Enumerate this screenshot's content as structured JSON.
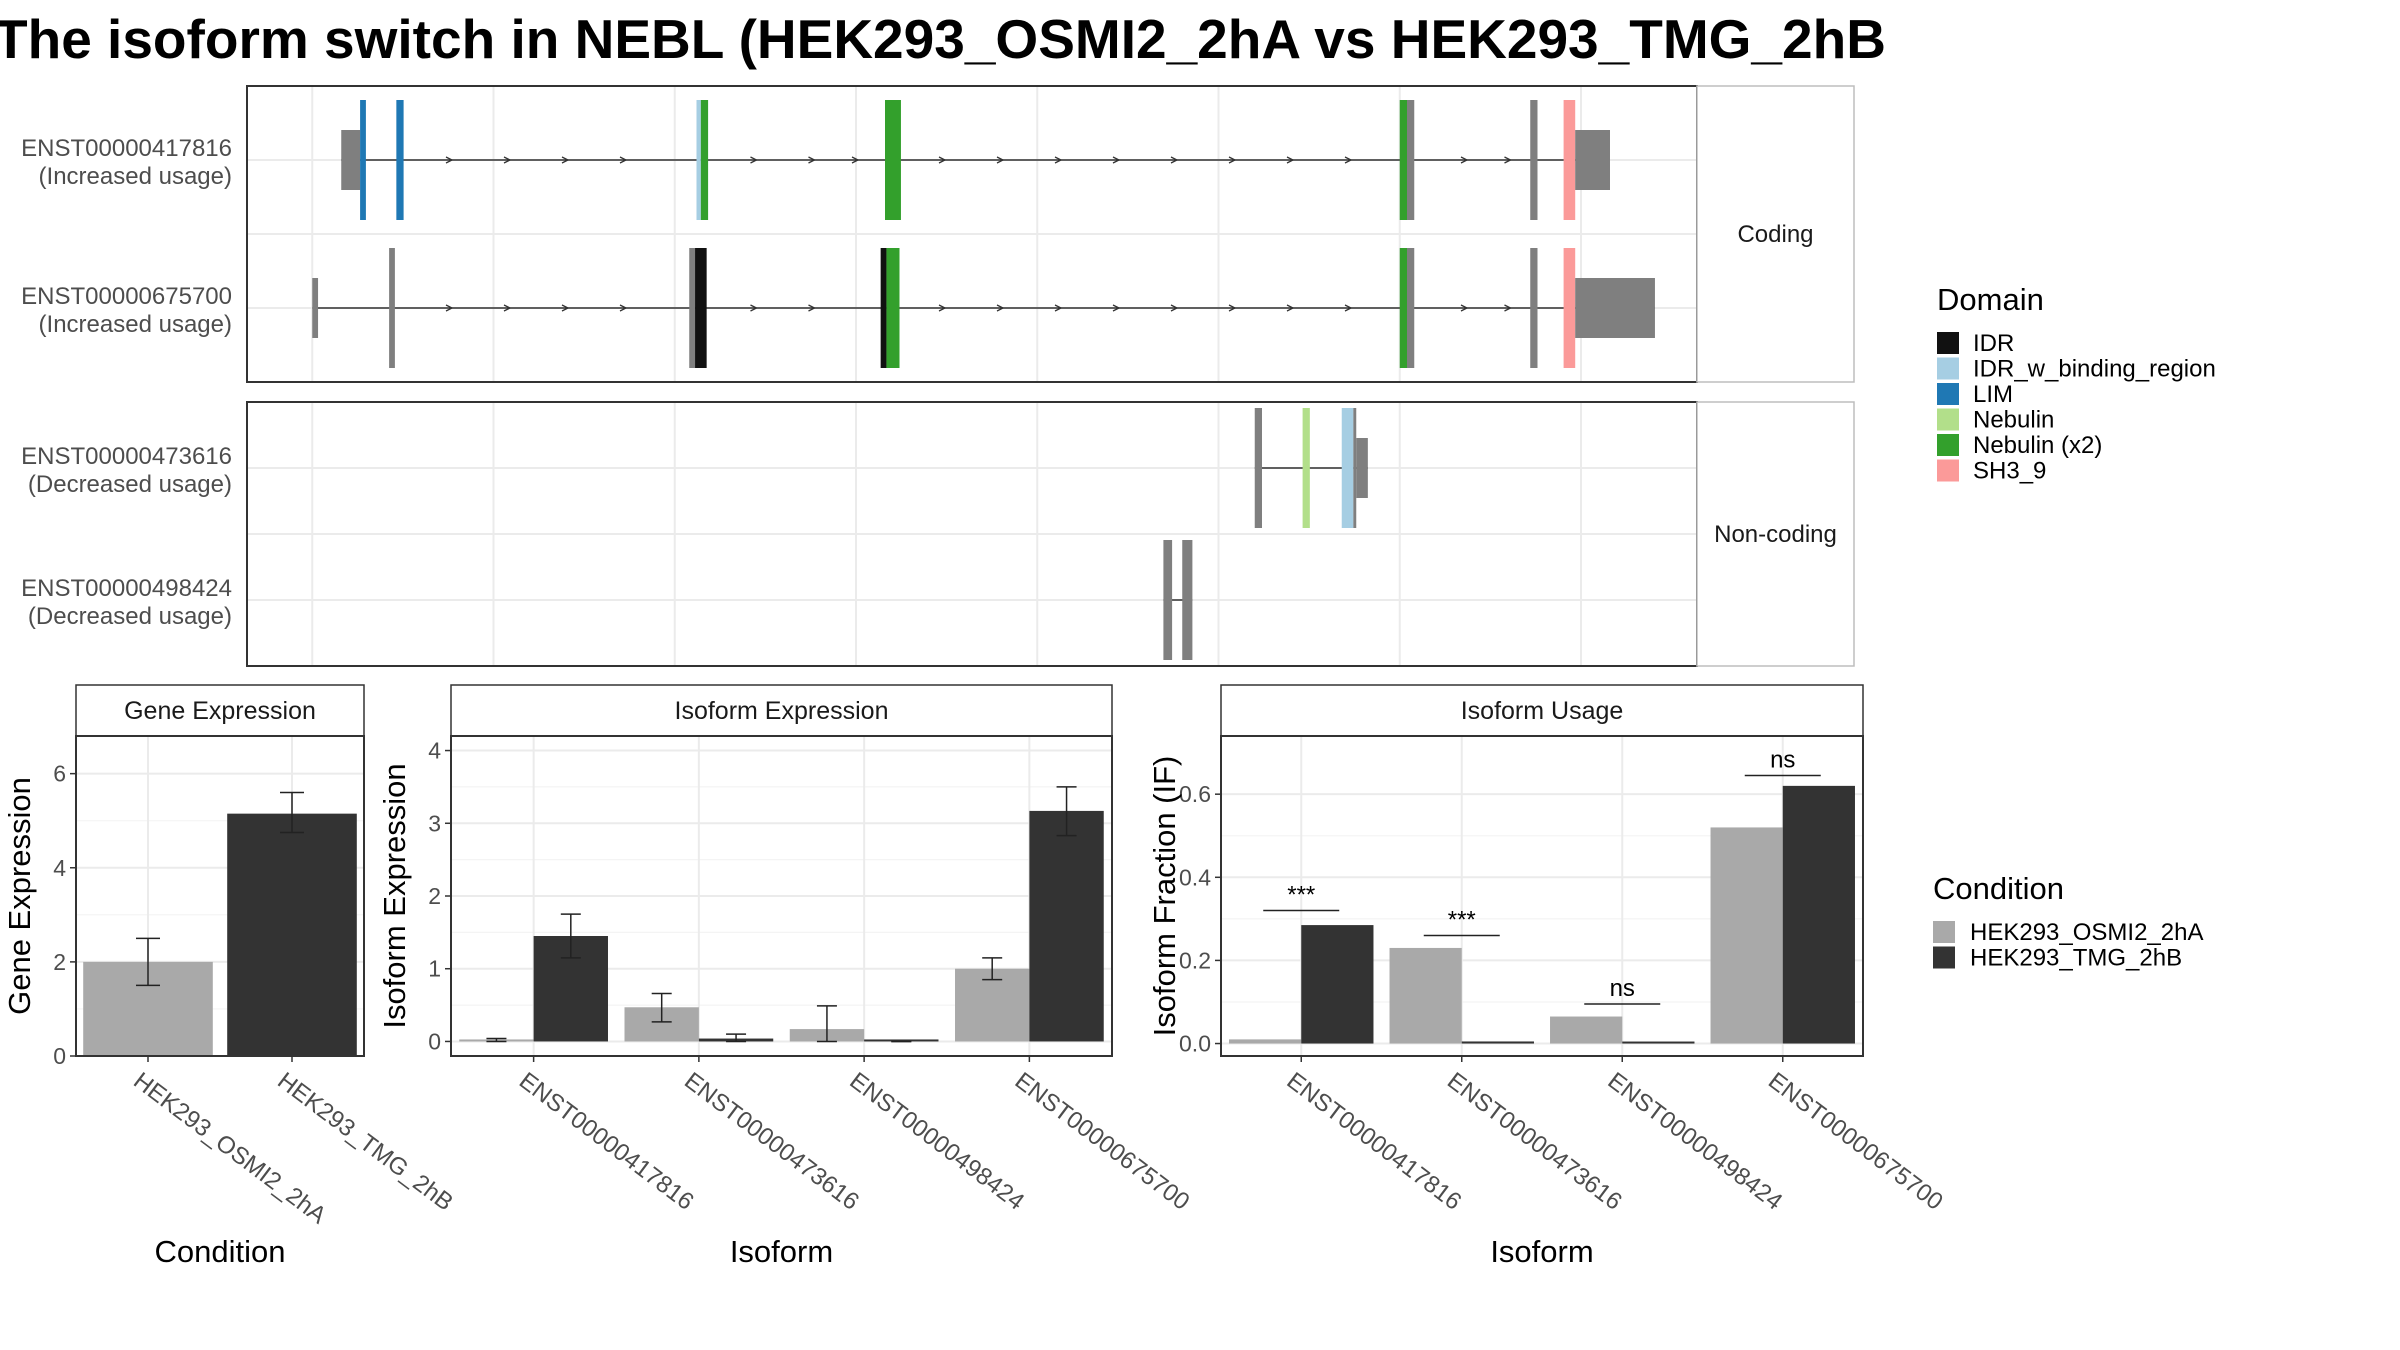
{
  "title": "The isoform switch in NEBL (HEK293_OSMI2_2hA vs HEK293_TMG_2hB",
  "colors": {
    "IDR": "#111111",
    "IDR_w_binding_region": "#a6cee3",
    "LIM": "#1f78b4",
    "Nebulin": "#b2df8a",
    "Nebulin (x2)": "#33a02c",
    "SH3_9": "#fb9a99",
    "exon": "#7f7f7f",
    "cond1": "#a9a9a9",
    "cond2": "#333333"
  },
  "structure": {
    "panels": [
      {
        "strip": "Coding",
        "transcripts": [
          {
            "label": [
              "ENST00000417816",
              "(Increased usage)"
            ],
            "exons": [
              {
                "start": 0.065,
                "end": 0.078,
                "h": "wide"
              },
              {
                "start": 0.078,
                "end": 0.082,
                "h": "tall",
                "domain": "LIM"
              },
              {
                "start": 0.103,
                "end": 0.108,
                "h": "tall",
                "domain": "LIM"
              },
              {
                "start": 0.31,
                "end": 0.313,
                "h": "tall",
                "domain": "IDR_w_binding_region"
              },
              {
                "start": 0.313,
                "end": 0.318,
                "h": "tall",
                "domain": "Nebulin (x2)"
              },
              {
                "start": 0.44,
                "end": 0.451,
                "h": "tall",
                "domain": "Nebulin (x2)"
              },
              {
                "start": 0.795,
                "end": 0.8,
                "h": "tall",
                "domain": "Nebulin (x2)"
              },
              {
                "start": 0.8,
                "end": 0.805,
                "h": "tall"
              },
              {
                "start": 0.885,
                "end": 0.89,
                "h": "tall"
              },
              {
                "start": 0.908,
                "end": 0.916,
                "h": "tall",
                "domain": "SH3_9"
              },
              {
                "start": 0.916,
                "end": 0.94,
                "h": "wide"
              }
            ],
            "intron": [
              0.065,
              0.94
            ],
            "arrows": [
              0.14,
              0.18,
              0.22,
              0.26,
              0.35,
              0.39,
              0.42,
              0.48,
              0.52,
              0.56,
              0.6,
              0.64,
              0.68,
              0.72,
              0.76,
              0.84,
              0.87
            ]
          },
          {
            "label": [
              "ENST00000675700",
              "(Increased usage)"
            ],
            "exons": [
              {
                "start": 0.045,
                "end": 0.049,
                "h": "wide"
              },
              {
                "start": 0.098,
                "end": 0.102,
                "h": "tall"
              },
              {
                "start": 0.305,
                "end": 0.309,
                "h": "tall"
              },
              {
                "start": 0.309,
                "end": 0.317,
                "h": "tall",
                "domain": "IDR"
              },
              {
                "start": 0.437,
                "end": 0.441,
                "h": "tall",
                "domain": "IDR"
              },
              {
                "start": 0.441,
                "end": 0.45,
                "h": "tall",
                "domain": "Nebulin (x2)"
              },
              {
                "start": 0.795,
                "end": 0.8,
                "h": "tall",
                "domain": "Nebulin (x2)"
              },
              {
                "start": 0.8,
                "end": 0.805,
                "h": "tall"
              },
              {
                "start": 0.885,
                "end": 0.89,
                "h": "tall"
              },
              {
                "start": 0.908,
                "end": 0.916,
                "h": "tall",
                "domain": "SH3_9"
              },
              {
                "start": 0.916,
                "end": 0.971,
                "h": "wide"
              }
            ],
            "intron": [
              0.045,
              0.971
            ],
            "arrows": [
              0.14,
              0.18,
              0.22,
              0.26,
              0.35,
              0.39,
              0.48,
              0.52,
              0.56,
              0.6,
              0.64,
              0.68,
              0.72,
              0.76,
              0.84,
              0.87
            ]
          }
        ]
      },
      {
        "strip": "Non-coding",
        "transcripts": [
          {
            "label": [
              "ENST00000473616",
              "(Decreased usage)"
            ],
            "exons": [
              {
                "start": 0.695,
                "end": 0.7,
                "h": "tall"
              },
              {
                "start": 0.728,
                "end": 0.733,
                "h": "tall",
                "domain": "Nebulin"
              },
              {
                "start": 0.755,
                "end": 0.763,
                "h": "tall",
                "domain": "IDR_w_binding_region"
              },
              {
                "start": 0.763,
                "end": 0.765,
                "h": "tall"
              },
              {
                "start": 0.765,
                "end": 0.773,
                "h": "wide"
              }
            ],
            "intron": [
              0.695,
              0.773
            ],
            "arrows": []
          },
          {
            "label": [
              "ENST00000498424",
              "(Decreased usage)"
            ],
            "exons": [
              {
                "start": 0.632,
                "end": 0.638,
                "h": "tall"
              },
              {
                "start": 0.645,
                "end": 0.652,
                "h": "tall"
              }
            ],
            "intron": [
              0.632,
              0.652
            ],
            "arrows": []
          }
        ]
      }
    ]
  },
  "legend": {
    "domain_title": "Domain",
    "domain_items": [
      "IDR",
      "IDR_w_binding_region",
      "LIM",
      "Nebulin",
      "Nebulin (x2)",
      "SH3_9"
    ],
    "condition_title": "Condition",
    "condition_items": [
      "HEK293_OSMI2_2hA",
      "HEK293_TMG_2hB"
    ]
  },
  "chart_data": [
    {
      "type": "bar",
      "title": "Gene Expression",
      "xlabel": "Condition",
      "ylabel": "Gene Expression",
      "categories": [
        "HEK293_OSMI2_2hA",
        "HEK293_TMG_2hB"
      ],
      "values": [
        2.0,
        5.15
      ],
      "errors": [
        [
          1.5,
          2.5
        ],
        [
          4.75,
          5.6
        ]
      ],
      "ylim": [
        0,
        6.8
      ],
      "yticks": [
        0,
        2,
        4,
        6
      ],
      "grid": true
    },
    {
      "type": "bar",
      "title": "Isoform Expression",
      "xlabel": "Isoform",
      "ylabel": "Isoform Expression",
      "categories": [
        "ENST00000417816",
        "ENST00000473616",
        "ENST00000498424",
        "ENST00000675700"
      ],
      "series": [
        {
          "name": "HEK293_OSMI2_2hA",
          "values": [
            0.02,
            0.47,
            0.17,
            1.0
          ],
          "errors": [
            [
              0.0,
              0.04
            ],
            [
              0.27,
              0.66
            ],
            [
              0.0,
              0.49
            ],
            [
              0.85,
              1.15
            ]
          ]
        },
        {
          "name": "HEK293_TMG_2hB",
          "values": [
            1.45,
            0.04,
            0.0,
            3.17
          ],
          "errors": [
            [
              1.15,
              1.75
            ],
            [
              0.0,
              0.1
            ],
            [
              0.0,
              0.0
            ],
            [
              2.83,
              3.5
            ]
          ]
        }
      ],
      "ylim": [
        -0.2,
        4.2
      ],
      "yticks": [
        0,
        1,
        2,
        3,
        4
      ],
      "grid": true
    },
    {
      "type": "bar",
      "title": "Isoform Usage",
      "xlabel": "Isoform",
      "ylabel": "Isoform Fraction (IF)",
      "categories": [
        "ENST00000417816",
        "ENST00000473616",
        "ENST00000498424",
        "ENST00000675700"
      ],
      "series": [
        {
          "name": "HEK293_OSMI2_2hA",
          "values": [
            0.01,
            0.23,
            0.065,
            0.52
          ]
        },
        {
          "name": "HEK293_TMG_2hB",
          "values": [
            0.285,
            0.005,
            0.0,
            0.62
          ]
        }
      ],
      "annotations": [
        {
          "label": "***",
          "y": 0.32
        },
        {
          "label": "***",
          "y": 0.26
        },
        {
          "label": "ns",
          "y": 0.095
        },
        {
          "label": "ns",
          "y": 0.645
        }
      ],
      "ylim": [
        -0.03,
        0.74
      ],
      "yticks": [
        0.0,
        0.2,
        0.4,
        0.6
      ],
      "ytick_labels": [
        "0.0",
        "0.2",
        "0.4",
        "0.6"
      ],
      "grid": true
    }
  ]
}
